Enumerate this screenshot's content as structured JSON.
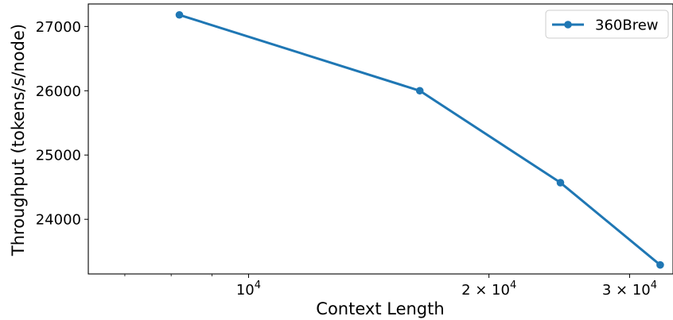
{
  "chart_data": {
    "type": "line",
    "xscale": "log",
    "xlim": [
      6300,
      34000
    ],
    "ylim": [
      23150,
      27350
    ],
    "xlabel": "Context Length",
    "ylabel": "Throughput (tokens/s/node)",
    "x_major_ticks": [
      {
        "value": 10000,
        "base": "10",
        "exp": "4"
      },
      {
        "value": 20000,
        "base": "2 × 10",
        "exp": "4"
      },
      {
        "value": 30000,
        "base": "3 × 10",
        "exp": "4"
      }
    ],
    "x_minor_ticks": [
      7000,
      8000,
      9000
    ],
    "y_ticks": [
      24000,
      25000,
      26000,
      27000
    ],
    "y_tick_labels": [
      "24000",
      "25000",
      "26000",
      "27000"
    ],
    "series": [
      {
        "name": "360Brew",
        "color": "#1f77b4",
        "marker": "circle",
        "x": [
          8192,
          16384,
          24576,
          32768
        ],
        "y": [
          27180,
          26000,
          24570,
          23290
        ]
      }
    ],
    "legend": {
      "position": "top-right"
    },
    "grid": false
  }
}
